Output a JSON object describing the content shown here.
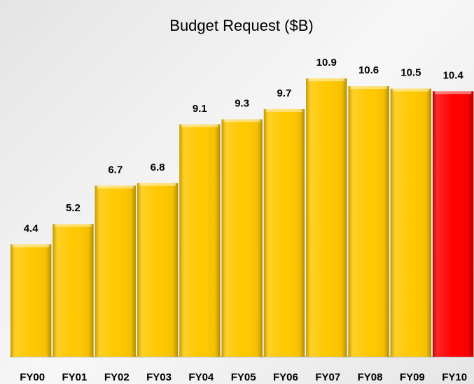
{
  "chart_data": {
    "type": "bar",
    "title": "Budget Request ($B)",
    "categories": [
      "FY00",
      "FY01",
      "FY02",
      "FY03",
      "FY04",
      "FY05",
      "FY06",
      "FY07",
      "FY08",
      "FY09",
      "FY10"
    ],
    "values": [
      4.4,
      5.2,
      6.7,
      6.8,
      9.1,
      9.3,
      9.7,
      10.9,
      10.6,
      10.5,
      10.4
    ],
    "colors": [
      "#ffc800",
      "#ffc800",
      "#ffc800",
      "#ffc800",
      "#ffc800",
      "#ffc800",
      "#ffc800",
      "#ffc800",
      "#ffc800",
      "#ffc800",
      "#ff0000"
    ]
  }
}
